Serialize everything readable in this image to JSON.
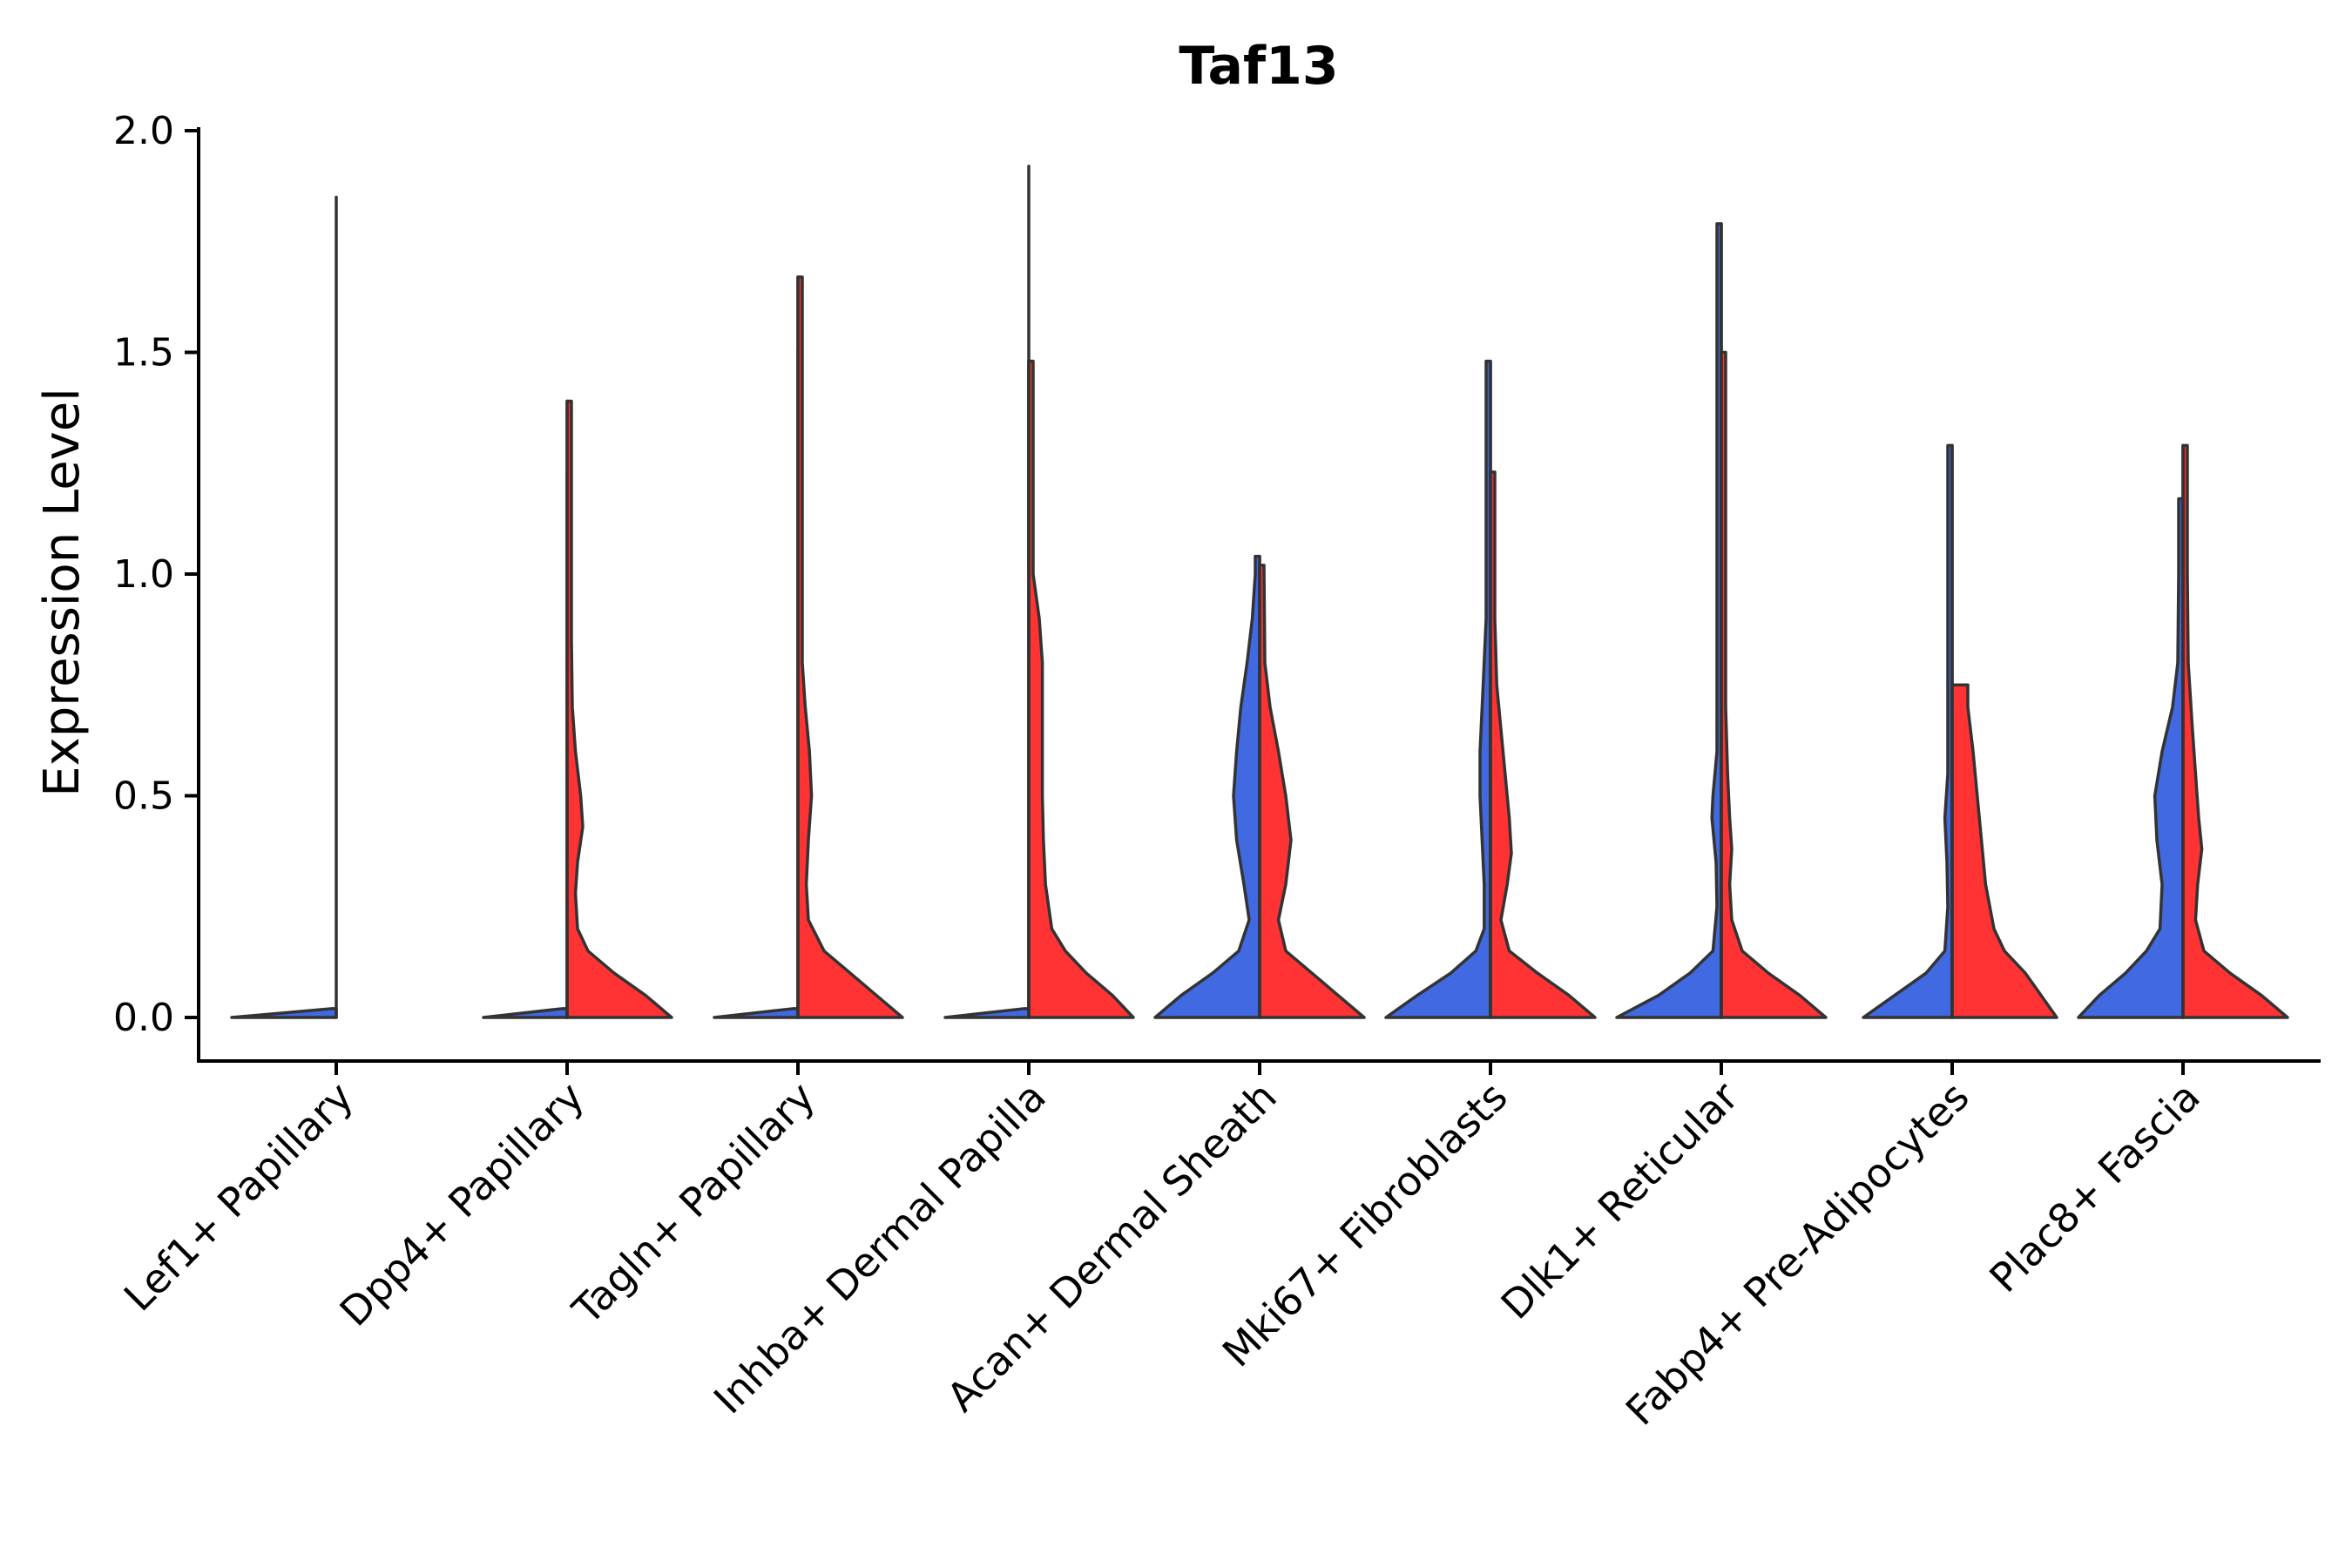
{
  "chart_data": {
    "type": "violin",
    "title": "Taf13",
    "xlabel": "",
    "ylabel": "Expression Level",
    "ylim": [
      -0.1,
      2.0
    ],
    "yticks": [
      "0.0",
      "0.5",
      "1.0",
      "1.5",
      "2.0"
    ],
    "ytick_values": [
      0.0,
      0.5,
      1.0,
      1.5,
      2.0
    ],
    "split": true,
    "colors": {
      "left": "#4169E1",
      "right": "#FF3333",
      "outline": "#333333"
    },
    "categories": [
      "Lef1+ Papillary",
      "Dpp4+ Papillary",
      "Tagln+ Papillary",
      "Inhba+ Dermal Papilla",
      "Acan+ Dermal Sheath",
      "Mki67+ Fibroblasts",
      "Dlk1+ Reticular",
      "Fabp4+ Pre-Adipocytes",
      "Plac8+ Fascia"
    ],
    "series": [
      {
        "name": "left",
        "max": [
          1.85,
          1.23,
          1.51,
          1.92,
          1.04,
          1.48,
          1.79,
          1.29,
          1.17
        ],
        "profiles": [
          [
            [
              0,
              1.0
            ],
            [
              0.02,
              0.0
            ]
          ],
          [
            [
              0,
              0.8
            ],
            [
              0.02,
              0.0
            ]
          ],
          [
            [
              0,
              0.8
            ],
            [
              0.02,
              0.0
            ]
          ],
          [
            [
              0,
              0.8
            ],
            [
              0.02,
              0.0
            ]
          ],
          [
            [
              0,
              1.0
            ],
            [
              0.05,
              0.75
            ],
            [
              0.1,
              0.45
            ],
            [
              0.15,
              0.2
            ],
            [
              0.22,
              0.1
            ],
            [
              0.3,
              0.15
            ],
            [
              0.4,
              0.22
            ],
            [
              0.5,
              0.25
            ],
            [
              0.6,
              0.22
            ],
            [
              0.7,
              0.18
            ],
            [
              0.8,
              0.12
            ],
            [
              0.9,
              0.07
            ],
            [
              1.0,
              0.03
            ],
            [
              1.04,
              0.0
            ]
          ],
          [
            [
              0,
              1.0
            ],
            [
              0.05,
              0.7
            ],
            [
              0.1,
              0.38
            ],
            [
              0.15,
              0.14
            ],
            [
              0.2,
              0.06
            ],
            [
              0.3,
              0.06
            ],
            [
              0.4,
              0.08
            ],
            [
              0.5,
              0.1
            ],
            [
              0.6,
              0.1
            ],
            [
              0.75,
              0.07
            ],
            [
              0.9,
              0.04
            ],
            [
              1.1,
              0.02
            ],
            [
              1.48,
              0.0
            ]
          ],
          [
            [
              0,
              1.0
            ],
            [
              0.05,
              0.6
            ],
            [
              0.1,
              0.3
            ],
            [
              0.15,
              0.08
            ],
            [
              0.25,
              0.04
            ],
            [
              0.35,
              0.05
            ],
            [
              0.45,
              0.09
            ],
            [
              0.5,
              0.08
            ],
            [
              0.6,
              0.04
            ],
            [
              0.8,
              0.02
            ],
            [
              1.0,
              0.01
            ],
            [
              1.79,
              0.0
            ]
          ],
          [
            [
              0,
              0.85
            ],
            [
              0.05,
              0.55
            ],
            [
              0.1,
              0.25
            ],
            [
              0.15,
              0.07
            ],
            [
              0.25,
              0.04
            ],
            [
              0.35,
              0.05
            ],
            [
              0.45,
              0.07
            ],
            [
              0.55,
              0.04
            ],
            [
              0.7,
              0.02
            ],
            [
              1.29,
              0.0
            ]
          ],
          [
            [
              0,
              1.0
            ],
            [
              0.05,
              0.8
            ],
            [
              0.1,
              0.55
            ],
            [
              0.15,
              0.35
            ],
            [
              0.2,
              0.22
            ],
            [
              0.3,
              0.2
            ],
            [
              0.4,
              0.25
            ],
            [
              0.5,
              0.27
            ],
            [
              0.6,
              0.2
            ],
            [
              0.7,
              0.1
            ],
            [
              0.8,
              0.05
            ],
            [
              1.0,
              0.02
            ],
            [
              1.17,
              0.0
            ]
          ]
        ]
      },
      {
        "name": "right",
        "max": [
          0.0,
          1.39,
          1.67,
          1.48,
          1.02,
          1.23,
          1.5,
          0.75,
          1.29
        ],
        "profiles": [
          [],
          [
            [
              0,
              1.0
            ],
            [
              0.05,
              0.75
            ],
            [
              0.1,
              0.45
            ],
            [
              0.15,
              0.2
            ],
            [
              0.2,
              0.1
            ],
            [
              0.28,
              0.08
            ],
            [
              0.35,
              0.1
            ],
            [
              0.43,
              0.15
            ],
            [
              0.5,
              0.13
            ],
            [
              0.6,
              0.08
            ],
            [
              0.7,
              0.05
            ],
            [
              0.85,
              0.03
            ],
            [
              1.0,
              0.015
            ],
            [
              1.39,
              0.0
            ]
          ],
          [
            [
              0,
              1.0
            ],
            [
              0.05,
              0.75
            ],
            [
              0.1,
              0.5
            ],
            [
              0.15,
              0.25
            ],
            [
              0.22,
              0.1
            ],
            [
              0.3,
              0.08
            ],
            [
              0.4,
              0.1
            ],
            [
              0.5,
              0.13
            ],
            [
              0.6,
              0.11
            ],
            [
              0.7,
              0.07
            ],
            [
              0.8,
              0.04
            ],
            [
              1.0,
              0.02
            ],
            [
              1.67,
              0.0
            ]
          ],
          [
            [
              0,
              1.0
            ],
            [
              0.05,
              0.8
            ],
            [
              0.1,
              0.55
            ],
            [
              0.15,
              0.35
            ],
            [
              0.2,
              0.22
            ],
            [
              0.3,
              0.16
            ],
            [
              0.4,
              0.14
            ],
            [
              0.5,
              0.13
            ],
            [
              0.6,
              0.13
            ],
            [
              0.8,
              0.13
            ],
            [
              0.9,
              0.1
            ],
            [
              1.0,
              0.04
            ],
            [
              1.1,
              0.02
            ],
            [
              1.48,
              0.0
            ]
          ],
          [
            [
              0,
              1.0
            ],
            [
              0.05,
              0.75
            ],
            [
              0.1,
              0.5
            ],
            [
              0.15,
              0.25
            ],
            [
              0.22,
              0.18
            ],
            [
              0.3,
              0.25
            ],
            [
              0.4,
              0.3
            ],
            [
              0.5,
              0.25
            ],
            [
              0.6,
              0.18
            ],
            [
              0.7,
              0.1
            ],
            [
              0.8,
              0.05
            ],
            [
              1.02,
              0.0
            ]
          ],
          [
            [
              0,
              1.0
            ],
            [
              0.05,
              0.75
            ],
            [
              0.1,
              0.45
            ],
            [
              0.15,
              0.18
            ],
            [
              0.22,
              0.1
            ],
            [
              0.3,
              0.16
            ],
            [
              0.37,
              0.2
            ],
            [
              0.45,
              0.18
            ],
            [
              0.55,
              0.14
            ],
            [
              0.65,
              0.1
            ],
            [
              0.75,
              0.06
            ],
            [
              0.9,
              0.03
            ],
            [
              1.23,
              0.0
            ]
          ],
          [
            [
              0,
              1.0
            ],
            [
              0.05,
              0.75
            ],
            [
              0.1,
              0.45
            ],
            [
              0.15,
              0.2
            ],
            [
              0.22,
              0.1
            ],
            [
              0.3,
              0.08
            ],
            [
              0.38,
              0.1
            ],
            [
              0.45,
              0.08
            ],
            [
              0.55,
              0.06
            ],
            [
              0.7,
              0.04
            ],
            [
              0.9,
              0.02
            ],
            [
              1.1,
              0.01
            ],
            [
              1.5,
              0.0
            ]
          ],
          [
            [
              0,
              1.0
            ],
            [
              0.05,
              0.85
            ],
            [
              0.1,
              0.7
            ],
            [
              0.15,
              0.5
            ],
            [
              0.2,
              0.4
            ],
            [
              0.3,
              0.32
            ],
            [
              0.4,
              0.28
            ],
            [
              0.5,
              0.24
            ],
            [
              0.6,
              0.2
            ],
            [
              0.7,
              0.15
            ],
            [
              0.75,
              0.15
            ]
          ],
          [
            [
              0,
              1.0
            ],
            [
              0.05,
              0.75
            ],
            [
              0.1,
              0.45
            ],
            [
              0.15,
              0.2
            ],
            [
              0.22,
              0.12
            ],
            [
              0.3,
              0.14
            ],
            [
              0.38,
              0.18
            ],
            [
              0.45,
              0.15
            ],
            [
              0.55,
              0.12
            ],
            [
              0.65,
              0.09
            ],
            [
              0.8,
              0.05
            ],
            [
              1.0,
              0.02
            ],
            [
              1.29,
              0.0
            ]
          ]
        ]
      }
    ]
  }
}
